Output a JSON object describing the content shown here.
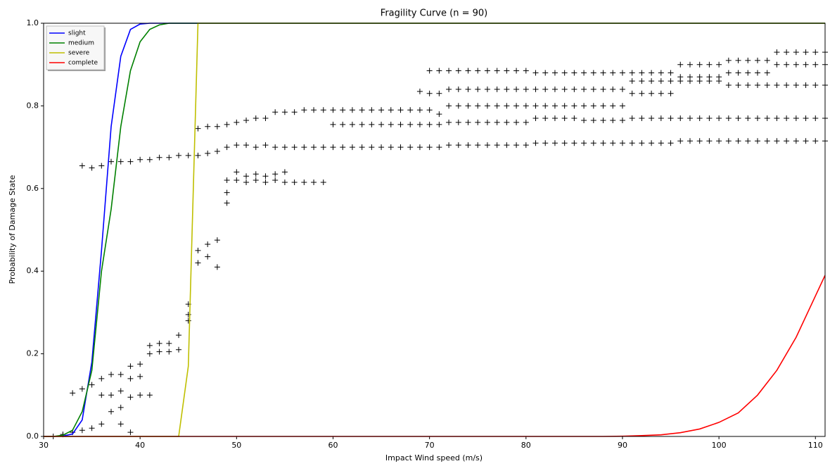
{
  "chart_data": {
    "type": "line",
    "title": "Fragility Curve (n = 90)",
    "x_label": "Impact Wind speed (m/s)",
    "y_label": "Probability of Damage State",
    "xlim": [
      30,
      111
    ],
    "xticks": [
      30,
      40,
      50,
      60,
      70,
      80,
      90,
      100,
      110
    ],
    "ylim": [
      0,
      1
    ],
    "yticks": [
      {
        "value": 0,
        "label": "0.0"
      },
      0.2,
      0.4,
      0.6,
      0.8,
      {
        "value": 1,
        "label": "1.0"
      }
    ],
    "legend": "upper left",
    "series": [
      {
        "name": "slight",
        "color": "#0000ff",
        "x": [
          30,
          31,
          32,
          33,
          34,
          35,
          36,
          37,
          38,
          39,
          40,
          41,
          111
        ],
        "values": [
          0,
          0,
          0.001,
          0.006,
          0.04,
          0.18,
          0.45,
          0.75,
          0.92,
          0.985,
          0.998,
          1,
          1
        ]
      },
      {
        "name": "medium",
        "color": "#008000",
        "x": [
          30,
          31,
          32,
          33,
          34,
          35,
          36,
          37,
          38,
          39,
          40,
          41,
          42,
          43,
          111
        ],
        "values": [
          0,
          0,
          0.003,
          0.015,
          0.06,
          0.16,
          0.4,
          0.55,
          0.75,
          0.885,
          0.955,
          0.985,
          0.996,
          1,
          1
        ]
      },
      {
        "name": "severe",
        "color": "#bfbf00",
        "x": [
          30,
          44,
          45,
          46,
          111
        ],
        "values": [
          0,
          0,
          0.17,
          1,
          1
        ]
      },
      {
        "name": "complete",
        "color": "#ff0000",
        "x": [
          30,
          88,
          90,
          92,
          94,
          96,
          98,
          100,
          102,
          104,
          106,
          108,
          110,
          111
        ],
        "values": [
          0,
          0,
          0.0005,
          0.002,
          0.004,
          0.009,
          0.018,
          0.034,
          0.057,
          0.1,
          0.16,
          0.24,
          0.34,
          0.39
        ]
      }
    ],
    "samples": [
      {
        "x": 31,
        "values": [
          0
        ]
      },
      {
        "x": 32,
        "values": [
          0.005
        ]
      },
      {
        "x": 33,
        "values": [
          0.105,
          0.01
        ]
      },
      {
        "x": 34,
        "values": [
          0.655,
          0.115,
          0.015
        ]
      },
      {
        "x": 35,
        "values": [
          0.65,
          0.125,
          0.02
        ]
      },
      {
        "x": 36,
        "values": [
          0.655,
          0.14,
          0.1,
          0.03
        ]
      },
      {
        "x": 37,
        "values": [
          0.665,
          0.15,
          0.1,
          0.06
        ]
      },
      {
        "x": 38,
        "values": [
          0.665,
          0.15,
          0.11,
          0.07,
          0.03
        ]
      },
      {
        "x": 39,
        "values": [
          0.665,
          0.17,
          0.14,
          0.095,
          0.01
        ]
      },
      {
        "x": 40,
        "values": [
          0.67,
          0.175,
          0.145,
          0.1
        ]
      },
      {
        "x": 41,
        "values": [
          0.67,
          0.22,
          0.2,
          0.1
        ]
      },
      {
        "x": 42,
        "values": [
          0.675,
          0.225,
          0.205
        ]
      },
      {
        "x": 43,
        "values": [
          0.675,
          0.225,
          0.205
        ]
      },
      {
        "x": 44,
        "values": [
          0.68,
          0.245,
          0.21
        ]
      },
      {
        "x": 45,
        "values": [
          0.68,
          0.32,
          0.295,
          0.28
        ]
      },
      {
        "x": 46,
        "values": [
          0.745,
          0.68,
          0.45,
          0.42
        ]
      },
      {
        "x": 47,
        "values": [
          0.75,
          0.685,
          0.465,
          0.435
        ]
      },
      {
        "x": 48,
        "values": [
          0.75,
          0.69,
          0.475,
          0.41
        ]
      },
      {
        "x": 49,
        "values": [
          0.755,
          0.7,
          0.62,
          0.59,
          0.565
        ]
      },
      {
        "x": 50,
        "values": [
          0.76,
          0.705,
          0.64,
          0.62
        ]
      },
      {
        "x": 51,
        "values": [
          0.765,
          0.705,
          0.63,
          0.615
        ]
      },
      {
        "x": 52,
        "values": [
          0.77,
          0.7,
          0.635,
          0.62
        ]
      },
      {
        "x": 53,
        "values": [
          0.77,
          0.705,
          0.63,
          0.615
        ]
      },
      {
        "x": 54,
        "values": [
          0.785,
          0.7,
          0.635,
          0.62
        ]
      },
      {
        "x": 55,
        "values": [
          0.785,
          0.7,
          0.64,
          0.615
        ]
      },
      {
        "x": 56,
        "values": [
          0.785,
          0.7,
          0.615
        ]
      },
      {
        "x": 57,
        "values": [
          0.79,
          0.7,
          0.615
        ]
      },
      {
        "x": 58,
        "values": [
          0.79,
          0.7,
          0.615
        ]
      },
      {
        "x": 59,
        "values": [
          0.79,
          0.7,
          0.615
        ]
      },
      {
        "x": 60,
        "values": [
          0.79,
          0.755,
          0.7
        ]
      },
      {
        "x": 61,
        "values": [
          0.79,
          0.755,
          0.7
        ]
      },
      {
        "x": 62,
        "values": [
          0.79,
          0.755,
          0.7
        ]
      },
      {
        "x": 63,
        "values": [
          0.79,
          0.755,
          0.7
        ]
      },
      {
        "x": 64,
        "values": [
          0.79,
          0.755,
          0.7
        ]
      },
      {
        "x": 65,
        "values": [
          0.79,
          0.755,
          0.7
        ]
      },
      {
        "x": 66,
        "values": [
          0.79,
          0.755,
          0.7
        ]
      },
      {
        "x": 67,
        "values": [
          0.79,
          0.755,
          0.7
        ]
      },
      {
        "x": 68,
        "values": [
          0.79,
          0.755,
          0.7
        ]
      },
      {
        "x": 69,
        "values": [
          0.835,
          0.79,
          0.755,
          0.7
        ]
      },
      {
        "x": 70,
        "values": [
          0.885,
          0.83,
          0.79,
          0.755,
          0.7
        ]
      },
      {
        "x": 71,
        "values": [
          0.885,
          0.83,
          0.78,
          0.755,
          0.7
        ]
      },
      {
        "x": 72,
        "values": [
          0.885,
          0.84,
          0.8,
          0.76,
          0.705
        ]
      },
      {
        "x": 73,
        "values": [
          0.885,
          0.84,
          0.8,
          0.76,
          0.705
        ]
      },
      {
        "x": 74,
        "values": [
          0.885,
          0.84,
          0.8,
          0.76,
          0.705
        ]
      },
      {
        "x": 75,
        "values": [
          0.885,
          0.84,
          0.8,
          0.76,
          0.705
        ]
      },
      {
        "x": 76,
        "values": [
          0.885,
          0.84,
          0.8,
          0.76,
          0.705
        ]
      },
      {
        "x": 77,
        "values": [
          0.885,
          0.84,
          0.8,
          0.76,
          0.705
        ]
      },
      {
        "x": 78,
        "values": [
          0.885,
          0.84,
          0.8,
          0.76,
          0.705
        ]
      },
      {
        "x": 79,
        "values": [
          0.885,
          0.84,
          0.8,
          0.76,
          0.705
        ]
      },
      {
        "x": 80,
        "values": [
          0.885,
          0.84,
          0.8,
          0.76,
          0.705
        ]
      },
      {
        "x": 81,
        "values": [
          0.88,
          0.84,
          0.8,
          0.77,
          0.71
        ]
      },
      {
        "x": 82,
        "values": [
          0.88,
          0.84,
          0.8,
          0.77,
          0.71
        ]
      },
      {
        "x": 83,
        "values": [
          0.88,
          0.84,
          0.8,
          0.77,
          0.71
        ]
      },
      {
        "x": 84,
        "values": [
          0.88,
          0.84,
          0.8,
          0.77,
          0.71
        ]
      },
      {
        "x": 85,
        "values": [
          0.88,
          0.84,
          0.8,
          0.77,
          0.71
        ]
      },
      {
        "x": 86,
        "values": [
          0.88,
          0.84,
          0.8,
          0.765,
          0.71
        ]
      },
      {
        "x": 87,
        "values": [
          0.88,
          0.84,
          0.8,
          0.765,
          0.71
        ]
      },
      {
        "x": 88,
        "values": [
          0.88,
          0.84,
          0.8,
          0.765,
          0.71
        ]
      },
      {
        "x": 89,
        "values": [
          0.88,
          0.84,
          0.8,
          0.765,
          0.71
        ]
      },
      {
        "x": 90,
        "values": [
          0.88,
          0.84,
          0.8,
          0.765,
          0.71
        ]
      },
      {
        "x": 91,
        "values": [
          0.88,
          0.86,
          0.83,
          0.77,
          0.71
        ]
      },
      {
        "x": 92,
        "values": [
          0.88,
          0.86,
          0.83,
          0.77,
          0.71
        ]
      },
      {
        "x": 93,
        "values": [
          0.88,
          0.86,
          0.83,
          0.77,
          0.71
        ]
      },
      {
        "x": 94,
        "values": [
          0.88,
          0.86,
          0.83,
          0.77,
          0.71
        ]
      },
      {
        "x": 95,
        "values": [
          0.88,
          0.86,
          0.83,
          0.77,
          0.71
        ]
      },
      {
        "x": 96,
        "values": [
          0.9,
          0.87,
          0.86,
          0.77,
          0.715
        ]
      },
      {
        "x": 97,
        "values": [
          0.9,
          0.87,
          0.86,
          0.77,
          0.715
        ]
      },
      {
        "x": 98,
        "values": [
          0.9,
          0.87,
          0.86,
          0.77,
          0.715
        ]
      },
      {
        "x": 99,
        "values": [
          0.9,
          0.87,
          0.86,
          0.77,
          0.715
        ]
      },
      {
        "x": 100,
        "values": [
          0.9,
          0.87,
          0.86,
          0.77,
          0.715
        ]
      },
      {
        "x": 101,
        "values": [
          0.91,
          0.88,
          0.85,
          0.77,
          0.715
        ]
      },
      {
        "x": 102,
        "values": [
          0.91,
          0.88,
          0.85,
          0.77,
          0.715
        ]
      },
      {
        "x": 103,
        "values": [
          0.91,
          0.88,
          0.85,
          0.77,
          0.715
        ]
      },
      {
        "x": 104,
        "values": [
          0.91,
          0.88,
          0.85,
          0.77,
          0.715
        ]
      },
      {
        "x": 105,
        "values": [
          0.91,
          0.88,
          0.85,
          0.77,
          0.715
        ]
      },
      {
        "x": 106,
        "values": [
          0.93,
          0.9,
          0.85,
          0.77,
          0.715
        ]
      },
      {
        "x": 107,
        "values": [
          0.93,
          0.9,
          0.85,
          0.77,
          0.715
        ]
      },
      {
        "x": 108,
        "values": [
          0.93,
          0.9,
          0.85,
          0.77,
          0.715
        ]
      },
      {
        "x": 109,
        "values": [
          0.93,
          0.9,
          0.85,
          0.77,
          0.715
        ]
      },
      {
        "x": 110,
        "values": [
          0.93,
          0.9,
          0.85,
          0.77,
          0.715
        ]
      },
      {
        "x": 111,
        "values": [
          0.93,
          0.9,
          0.85,
          0.77,
          0.715
        ]
      }
    ]
  }
}
